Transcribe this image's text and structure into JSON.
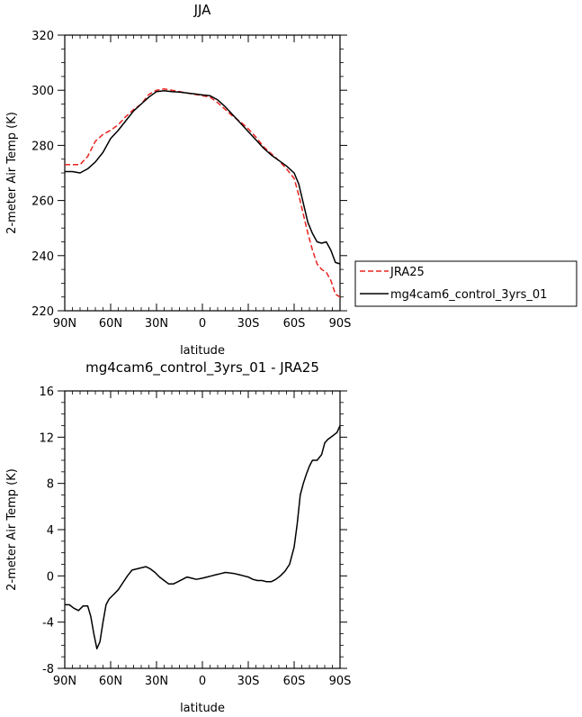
{
  "chart_data": [
    {
      "type": "line",
      "title": "JJA",
      "xlabel": "latitude",
      "ylabel": "2-meter Air Temp (K)",
      "xlim": [
        90,
        -90
      ],
      "ylim": [
        220,
        320
      ],
      "xticks": [
        90,
        60,
        30,
        0,
        -30,
        -60,
        -90
      ],
      "xtick_labels": [
        "90N",
        "60N",
        "30N",
        "0",
        "30S",
        "60S",
        "90S"
      ],
      "yticks": [
        220,
        240,
        260,
        280,
        300,
        320
      ],
      "ytick_labels": [
        "220",
        "240",
        "260",
        "280",
        "300",
        "320"
      ],
      "grid": false,
      "legend_placement": "outside-right",
      "series": [
        {
          "name": "JRA25",
          "color": "#e8231f",
          "dash": "dashed",
          "x": [
            90,
            85,
            80,
            75,
            70,
            65,
            60,
            55,
            50,
            45,
            40,
            35,
            30,
            25,
            20,
            15,
            10,
            5,
            0,
            -5,
            -10,
            -15,
            -20,
            -25,
            -30,
            -35,
            -40,
            -45,
            -50,
            -55,
            -60,
            -63,
            -66,
            -69,
            -72,
            -75,
            -78,
            -81,
            -84,
            -87,
            -90
          ],
          "values": [
            273.0,
            273.0,
            273.0,
            276.0,
            281.5,
            284.0,
            285.5,
            287.5,
            290.5,
            293.0,
            295.0,
            298.5,
            300.0,
            300.5,
            300.0,
            299.5,
            299.0,
            298.5,
            298.0,
            297.5,
            295.5,
            293.0,
            290.5,
            288.5,
            286.0,
            283.0,
            279.5,
            277.0,
            274.5,
            271.5,
            268.0,
            262.0,
            255.0,
            248.0,
            242.0,
            237.0,
            235.0,
            234.0,
            231.0,
            226.0,
            225.0
          ]
        },
        {
          "name": "mg4cam6_control_3yrs_01",
          "color": "#000000",
          "dash": "solid",
          "x": [
            90,
            85,
            80,
            75,
            70,
            65,
            60,
            55,
            50,
            45,
            40,
            35,
            30,
            25,
            20,
            15,
            10,
            5,
            0,
            -5,
            -10,
            -15,
            -20,
            -25,
            -30,
            -35,
            -40,
            -45,
            -50,
            -55,
            -60,
            -63,
            -66,
            -69,
            -72,
            -75,
            -78,
            -81,
            -84,
            -87,
            -90
          ],
          "values": [
            270.5,
            270.5,
            270.0,
            271.5,
            274.0,
            277.5,
            282.5,
            285.5,
            289.0,
            292.5,
            295.0,
            297.5,
            299.5,
            299.8,
            299.5,
            299.3,
            299.0,
            298.7,
            298.3,
            298.0,
            296.5,
            294.0,
            291.0,
            288.0,
            285.0,
            282.0,
            279.0,
            276.5,
            274.5,
            272.5,
            270.0,
            266.0,
            259.0,
            252.0,
            248.0,
            245.0,
            244.5,
            245.0,
            242.0,
            237.5,
            237.0
          ]
        }
      ]
    },
    {
      "type": "line",
      "title": "mg4cam6_control_3yrs_01 - JRA25",
      "xlabel": "latitude",
      "ylabel": "2-meter Air Temp (K)",
      "xlim": [
        90,
        -90
      ],
      "ylim": [
        -8,
        16
      ],
      "xticks": [
        90,
        60,
        30,
        0,
        -30,
        -60,
        -90
      ],
      "xtick_labels": [
        "90N",
        "60N",
        "30N",
        "0",
        "30S",
        "60S",
        "90S"
      ],
      "yticks": [
        -8,
        -4,
        0,
        4,
        8,
        12,
        16
      ],
      "ytick_labels": [
        "-8",
        "-4",
        "0",
        "4",
        "8",
        "12",
        "16"
      ],
      "grid": false,
      "series": [
        {
          "color": "#000000",
          "dash": "solid",
          "x": [
            90,
            87,
            84,
            81,
            78,
            75,
            73,
            71,
            69,
            67,
            65,
            63,
            61,
            58,
            55,
            52,
            49,
            46,
            43,
            40,
            37,
            34,
            31,
            28,
            25,
            22,
            19,
            16,
            13,
            10,
            7,
            4,
            0,
            -3,
            -6,
            -9,
            -12,
            -15,
            -18,
            -21,
            -24,
            -27,
            -30,
            -33,
            -36,
            -39,
            -42,
            -45,
            -48,
            -51,
            -54,
            -57,
            -60,
            -62,
            -64,
            -66,
            -68,
            -70,
            -72,
            -75,
            -78,
            -80,
            -82,
            -85,
            -88,
            -90
          ],
          "values": [
            -2.5,
            -2.5,
            -2.8,
            -3.0,
            -2.6,
            -2.6,
            -3.5,
            -5.0,
            -6.3,
            -5.7,
            -4.0,
            -2.5,
            -2.0,
            -1.6,
            -1.2,
            -0.6,
            0.0,
            0.5,
            0.6,
            0.7,
            0.8,
            0.6,
            0.3,
            -0.1,
            -0.4,
            -0.7,
            -0.7,
            -0.5,
            -0.3,
            -0.1,
            -0.2,
            -0.3,
            -0.2,
            -0.1,
            0.0,
            0.1,
            0.2,
            0.3,
            0.25,
            0.2,
            0.1,
            0.0,
            -0.1,
            -0.3,
            -0.4,
            -0.4,
            -0.5,
            -0.5,
            -0.3,
            0.0,
            0.4,
            1.0,
            2.5,
            4.5,
            7.0,
            8.0,
            8.8,
            9.5,
            10.0,
            10.0,
            10.5,
            11.5,
            11.8,
            12.1,
            12.4,
            13.0
          ]
        }
      ]
    }
  ],
  "legend": {
    "entries": [
      "JRA25",
      "mg4cam6_control_3yrs_01"
    ]
  }
}
